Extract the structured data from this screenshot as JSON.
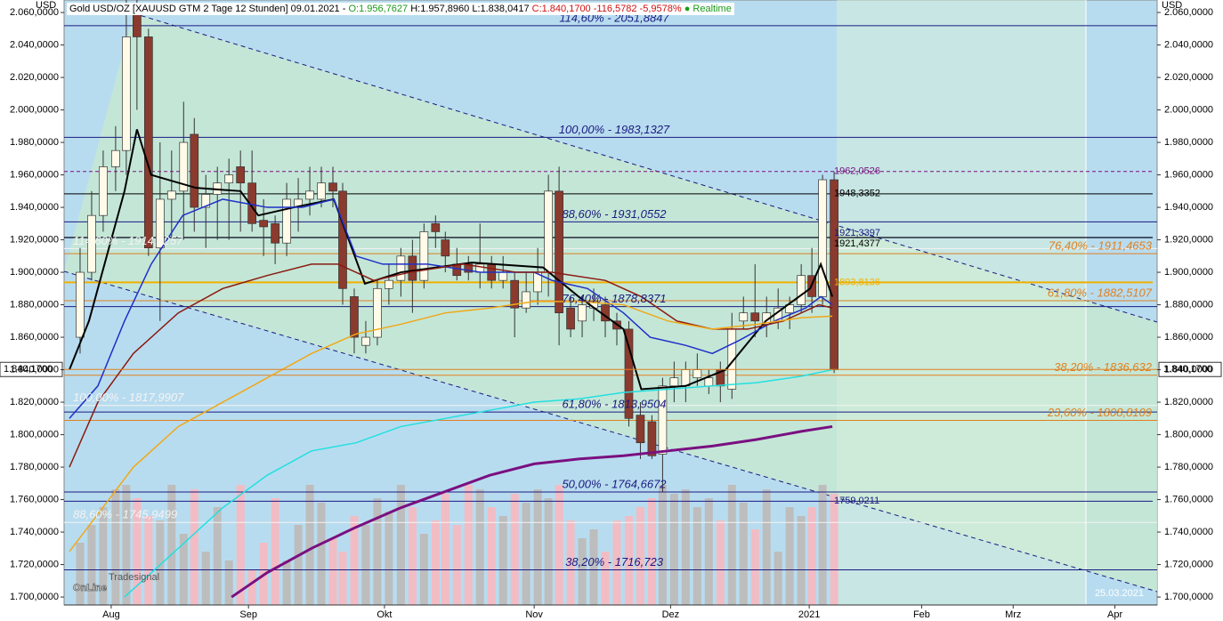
{
  "chart_data": {
    "type": "candlestick",
    "header": {
      "instrument": "Gold USD/OZ [XAUUSD GTM 2 Tage 12 Stunden] 09.01.2021 -",
      "open": "O:1.956,7627",
      "high": "H:1.957,8960",
      "low": "L:1.838,0417",
      "close": "C:1.840,1700",
      "change": "-116,5782",
      "pct": "-5,9578%",
      "status": "● Realtime"
    },
    "y_unit": "USD",
    "ylim": [
      1695.1,
      2067.7
    ],
    "yticks": [
      {
        "value": 1700,
        "label": "1.700,0000"
      },
      {
        "value": 1720,
        "label": "1.720,0000"
      },
      {
        "value": 1740,
        "label": "1.740,0000"
      },
      {
        "value": 1760,
        "label": "1.760,0000"
      },
      {
        "value": 1780,
        "label": "1.780,0000"
      },
      {
        "value": 1800,
        "label": "1.800,0000"
      },
      {
        "value": 1820,
        "label": "1.820,0000"
      },
      {
        "value": 1840,
        "label": "1.840,0000"
      },
      {
        "value": 1860,
        "label": "1.860,0000"
      },
      {
        "value": 1880,
        "label": "1.880,0000"
      },
      {
        "value": 1900,
        "label": "1.900,0000"
      },
      {
        "value": 1920,
        "label": "1.920,0000"
      },
      {
        "value": 1940,
        "label": "1.940,0000"
      },
      {
        "value": 1960,
        "label": "1.960,0000"
      },
      {
        "value": 1980,
        "label": "1.980,0000"
      },
      {
        "value": 2000,
        "label": "2.000,0000"
      },
      {
        "value": 2020,
        "label": "2.020,0000"
      },
      {
        "value": 2040,
        "label": "2.040,0000"
      },
      {
        "value": 2060,
        "label": "2.060,0000"
      }
    ],
    "xlim": [
      0,
      246
    ],
    "xticks": [
      {
        "value": 10.6,
        "label": "Aug"
      },
      {
        "value": 41.5,
        "label": "Sep"
      },
      {
        "value": 72.1,
        "label": "Okt"
      },
      {
        "value": 105.8,
        "label": "Nov"
      },
      {
        "value": 136.5,
        "label": "Dez"
      },
      {
        "value": 167.7,
        "label": "2021"
      },
      {
        "value": 193,
        "label": "Feb"
      },
      {
        "value": 213.6,
        "label": "Mrz"
      },
      {
        "value": 236.5,
        "label": "Apr"
      }
    ],
    "candles": {
      "x": [
        3.6,
        6.2,
        8.8,
        11.6,
        14.0,
        16.4,
        19.0,
        21.6,
        24.2,
        26.9,
        29.3,
        31.9,
        34.5,
        37.1,
        39.7,
        42.3,
        44.9,
        47.5,
        50.1,
        52.7,
        55.3,
        57.9,
        60.5,
        62.7,
        65.3,
        67.9,
        70.5,
        73.1,
        75.8,
        78.4,
        81.0,
        83.6,
        85.8,
        88.4,
        91.0,
        93.6,
        96.2,
        98.8,
        101.4,
        104.0,
        106.6,
        109.0,
        111.4,
        114.0,
        116.6,
        119.2,
        121.8,
        124.4,
        127.1,
        129.7,
        132.3,
        134.7,
        137.3,
        139.9,
        142.5,
        145.1,
        147.7,
        150.3,
        152.9,
        155.5,
        158.1,
        160.7,
        163.3,
        165.9,
        168.3,
        170.7,
        173.3
      ],
      "open": [
        1860,
        1900,
        1935,
        1965,
        1975,
        2060,
        2045,
        1915,
        1945,
        1950,
        1985,
        1940,
        1948,
        1955,
        1965,
        1955,
        1932,
        1930,
        1918,
        1940,
        1945,
        1945,
        1955,
        1950,
        1885,
        1855,
        1860,
        1890,
        1895,
        1910,
        1895,
        1930,
        1920,
        1905,
        1905,
        1900,
        1905,
        1895,
        1895,
        1878,
        1888,
        1900,
        1950,
        1878,
        1870,
        1878,
        1880,
        1870,
        1865,
        1812,
        1808,
        1788,
        1830,
        1830,
        1835,
        1830,
        1840,
        1828,
        1870,
        1875,
        1868,
        1870,
        1875,
        1880,
        1898,
        1885,
        1957
      ],
      "high": [
        1915,
        1950,
        1975,
        1990,
        2075,
        2075,
        2050,
        1980,
        1975,
        2005,
        1995,
        1960,
        1965,
        1970,
        1975,
        1975,
        1945,
        1935,
        1955,
        1958,
        1965,
        1965,
        1965,
        1955,
        1890,
        1870,
        1895,
        1905,
        1915,
        1920,
        1930,
        1935,
        1925,
        1915,
        1910,
        1930,
        1910,
        1910,
        1900,
        1900,
        1915,
        1960,
        1965,
        1885,
        1885,
        1890,
        1885,
        1875,
        1870,
        1820,
        1812,
        1835,
        1845,
        1845,
        1850,
        1840,
        1845,
        1875,
        1885,
        1905,
        1885,
        1890,
        1885,
        1905,
        1915,
        1960,
        1962
      ],
      "low": [
        1850,
        1895,
        1925,
        1950,
        1960,
        2000,
        1910,
        1870,
        1920,
        1920,
        1925,
        1915,
        1920,
        1920,
        1925,
        1925,
        1910,
        1905,
        1910,
        1925,
        1935,
        1940,
        1940,
        1880,
        1850,
        1850,
        1855,
        1880,
        1885,
        1875,
        1890,
        1915,
        1900,
        1895,
        1895,
        1890,
        1890,
        1890,
        1860,
        1875,
        1880,
        1885,
        1855,
        1860,
        1860,
        1870,
        1860,
        1855,
        1805,
        1785,
        1785,
        1765,
        1820,
        1820,
        1830,
        1825,
        1820,
        1822,
        1865,
        1860,
        1860,
        1865,
        1865,
        1875,
        1875,
        1880,
        1838
      ],
      "close": [
        1900,
        1935,
        1965,
        1975,
        2045,
        2045,
        1915,
        1945,
        1950,
        1980,
        1940,
        1948,
        1955,
        1960,
        1955,
        1930,
        1928,
        1918,
        1945,
        1945,
        1950,
        1955,
        1950,
        1890,
        1860,
        1860,
        1890,
        1895,
        1910,
        1895,
        1925,
        1925,
        1910,
        1898,
        1900,
        1905,
        1895,
        1900,
        1878,
        1888,
        1900,
        1950,
        1875,
        1865,
        1880,
        1882,
        1870,
        1865,
        1810,
        1795,
        1787,
        1830,
        1835,
        1840,
        1840,
        1835,
        1830,
        1865,
        1875,
        1870,
        1875,
        1878,
        1880,
        1898,
        1885,
        1957,
        1840
      ],
      "volume": [
        70,
        90,
        110,
        130,
        135,
        120,
        100,
        95,
        135,
        80,
        130,
        60,
        110,
        50,
        135,
        40,
        70,
        120,
        50,
        90,
        135,
        115,
        75,
        60,
        100,
        90,
        120,
        105,
        135,
        110,
        80,
        95,
        125,
        90,
        135,
        130,
        110,
        100,
        125,
        115,
        130,
        120,
        135,
        95,
        75,
        85,
        60,
        95,
        100,
        110,
        120,
        135,
        125,
        130,
        110,
        120,
        95,
        135,
        115,
        85,
        130,
        60,
        110,
        100,
        110,
        135,
        125
      ]
    },
    "lines": [
      {
        "color": "#000000",
        "x": [
          1.2,
          5.6,
          9.6,
          13.6,
          16.4,
          19.6,
          29.7,
          39.7,
          43.7,
          51.7,
          60.7,
          67.7,
          75.8,
          91.8,
          107.8,
          115.8,
          125.9,
          129.9,
          139.9,
          148.9,
          157.9,
          167.9,
          170.3,
          172.9
        ],
        "values": [
          1840,
          1870,
          1910,
          1950,
          1988,
          1960,
          1952,
          1950,
          1935,
          1940,
          1945,
          1893,
          1900,
          1906,
          1903,
          1885,
          1865,
          1828,
          1830,
          1840,
          1870,
          1890,
          1905,
          1885
        ]
      },
      {
        "color": "#1f2fc8",
        "x": [
          1.2,
          7.6,
          13.6,
          19.6,
          26.7,
          35.7,
          41.7,
          45.7,
          53.7,
          60.7,
          65.7,
          71.7,
          81.8,
          93.8,
          105.8,
          109.8,
          117.8,
          125.9,
          131.9,
          139.9,
          145.9,
          151.9,
          159.9,
          166.9,
          170.3,
          172.9
        ],
        "values": [
          1810,
          1830,
          1870,
          1905,
          1935,
          1945,
          1942,
          1940,
          1940,
          1945,
          1910,
          1905,
          1905,
          1900,
          1900,
          1895,
          1890,
          1875,
          1860,
          1855,
          1850,
          1858,
          1870,
          1878,
          1885,
          1880
        ]
      },
      {
        "color": "#8b1a10",
        "x": [
          1.2,
          7.6,
          15.6,
          25.7,
          35.7,
          45.7,
          55.7,
          61.7,
          69.7,
          77.8,
          89.8,
          101.8,
          109.8,
          121.8,
          129.9,
          137.9,
          145.9,
          153.9,
          161.9,
          169.9,
          172.9
        ],
        "values": [
          1780,
          1820,
          1850,
          1875,
          1890,
          1898,
          1905,
          1905,
          1895,
          1900,
          1905,
          1900,
          1900,
          1895,
          1885,
          1870,
          1865,
          1865,
          1870,
          1880,
          1878
        ]
      },
      {
        "color": "#f0a818",
        "x": [
          1.2,
          15.6,
          25.7,
          35.7,
          45.7,
          55.7,
          65.7,
          75.8,
          85.8,
          95.8,
          105.8,
          115.8,
          125.9,
          135.9,
          145.9,
          155.9,
          165.9,
          172.9
        ],
        "values": [
          1728,
          1780,
          1805,
          1820,
          1835,
          1850,
          1862,
          1868,
          1875,
          1878,
          1882,
          1882,
          1880,
          1870,
          1865,
          1868,
          1872,
          1873
        ]
      },
      {
        "color": "#22e0e0",
        "x": [
          13.6,
          25.7,
          35.7,
          45.7,
          55.7,
          65.7,
          75.8,
          85.8,
          95.8,
          105.8,
          115.8,
          125.9,
          135.9,
          145.9,
          155.9,
          165.9,
          172.9
        ],
        "values": [
          1700,
          1730,
          1755,
          1775,
          1790,
          1795,
          1805,
          1810,
          1815,
          1820,
          1822,
          1826,
          1828,
          1830,
          1832,
          1836,
          1840
        ]
      },
      {
        "color": "#7a1080",
        "x": [
          37.7,
          45.7,
          55.7,
          65.7,
          75.8,
          85.8,
          95.8,
          105.8,
          115.8,
          125.9,
          135.9,
          145.9,
          155.9,
          165.9,
          172.9
        ],
        "values": [
          1700,
          1715,
          1730,
          1743,
          1755,
          1765,
          1775,
          1782,
          1785,
          1787,
          1790,
          1793,
          1797,
          1802,
          1805
        ]
      }
    ],
    "fib_levels": [
      {
        "text": "114,60% - 2051,8847",
        "value": 2051.8847,
        "color": "#1a1a80",
        "anchor": "middle"
      },
      {
        "text": "100,00% - 1983,1327",
        "value": 1983.1327,
        "color": "#1a1a80",
        "anchor": "middle"
      },
      {
        "text": "88,60% - 1931,0552",
        "value": 1931.0552,
        "color": "#1a1a80",
        "anchor": "middle"
      },
      {
        "text": "76,40% - 1878,8371",
        "value": 1878.8371,
        "color": "#1a1a80",
        "anchor": "middle"
      },
      {
        "text": "61,80% - 1813,9504",
        "value": 1813.9504,
        "color": "#1a1a80",
        "anchor": "middle"
      },
      {
        "text": "50,00% - 1764,6672",
        "value": 1764.6672,
        "color": "#1a1a80",
        "anchor": "middle"
      },
      {
        "text": "38,20% - 1716,723",
        "value": 1716.723,
        "color": "#1a1a80",
        "anchor": "middle"
      },
      {
        "text": "76,40% - 1911,4653",
        "value": 1911.4653,
        "color": "#e08020",
        "anchor": "end"
      },
      {
        "text": "61,80% - 1882,5107",
        "value": 1882.5107,
        "color": "#e08020",
        "anchor": "end"
      },
      {
        "text": "38,20% - 1836,632",
        "value": 1836.632,
        "color": "#e08020",
        "anchor": "end"
      },
      {
        "text": "23,60% - 1808,8109",
        "value": 1808.8109,
        "color": "#e08020",
        "anchor": "end"
      },
      {
        "text": "114,60% - 1914,6257",
        "value": 1914.6257,
        "color": "#f4f4f4",
        "anchor": "start"
      },
      {
        "text": "100,00% - 1817,9907",
        "value": 1817.9907,
        "color": "#f4f4f4",
        "anchor": "start"
      },
      {
        "text": "88,60% - 1745,9499",
        "value": 1745.9499,
        "color": "#f4f4f4",
        "anchor": "start"
      }
    ],
    "price_levels": [
      {
        "label": "1962,0526",
        "value": 1962.0526,
        "color": "#7a1080"
      },
      {
        "label": "1948,3352",
        "value": 1948.3352,
        "color": "#000000"
      },
      {
        "label": "1921,3397",
        "value": 1921.3397,
        "color": "#1a1a80"
      },
      {
        "label": "1921,4377",
        "value": 1921.4377,
        "color": "#000000"
      },
      {
        "label": "1893,8136",
        "value": 1893.8136,
        "color": "#f0b000"
      },
      {
        "label": "1759,0211",
        "value": 1759.0211,
        "color": "#1a1a80"
      }
    ],
    "current_price": {
      "value": 1840.17,
      "label": "1.840,1700"
    },
    "end_date": "25.03.2021",
    "logo": [
      "Tradesignal",
      "OnLine"
    ]
  }
}
